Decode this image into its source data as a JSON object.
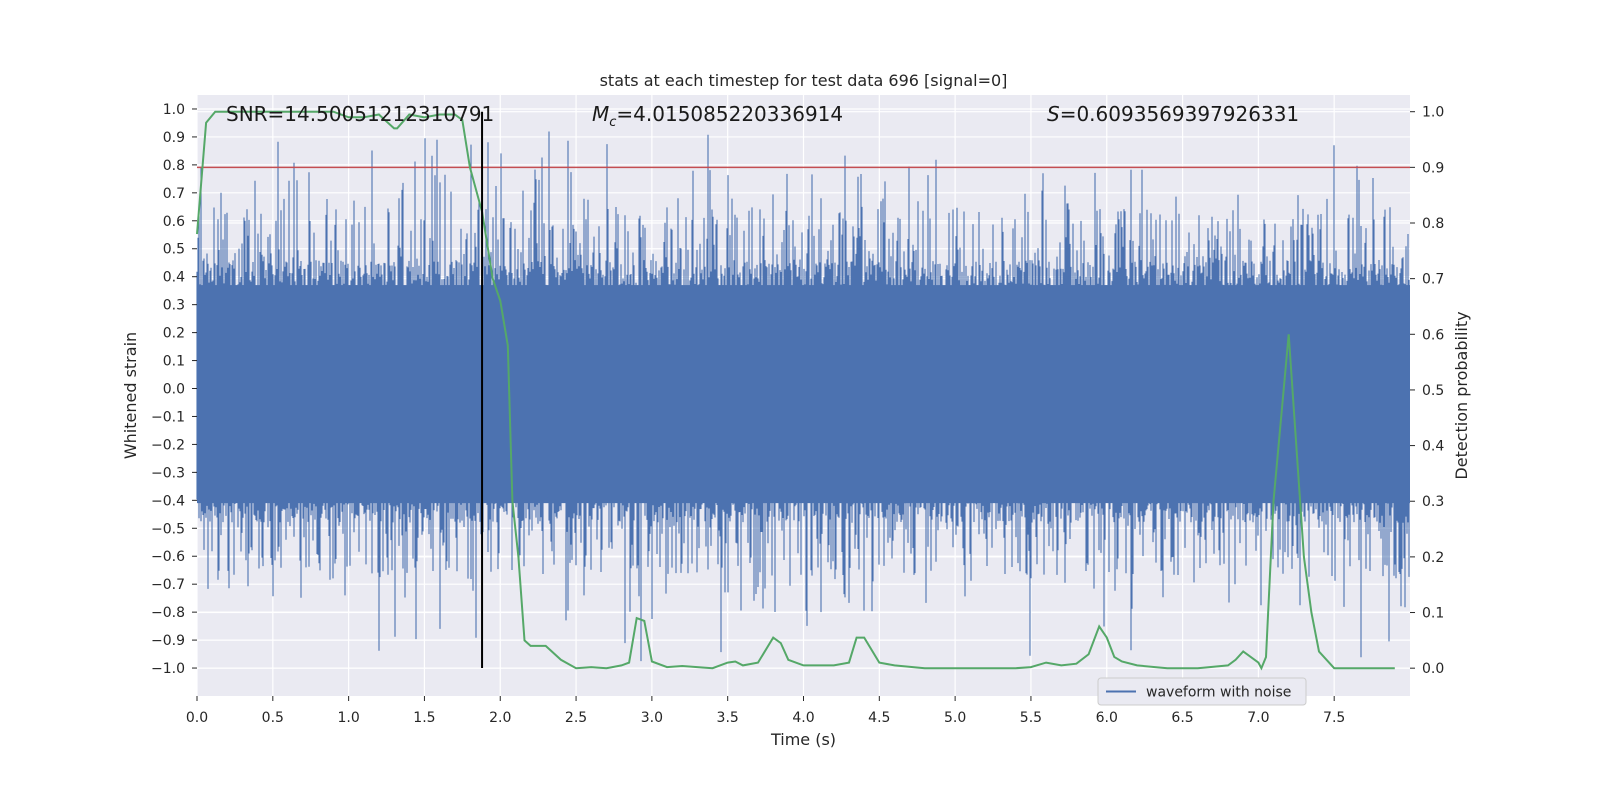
{
  "chart_data": {
    "type": "line",
    "title": "stats at each timestep for test data 696 [signal=0]",
    "xlabel": "Time (s)",
    "ylabel_left": "Whitened strain",
    "ylabel_right": "Detection probability",
    "xlim": [
      0,
      8
    ],
    "ylim_left": [
      -1.1,
      1.05
    ],
    "ylim_right": [
      -0.05,
      1.03
    ],
    "x_ticks": [
      "0.0",
      "0.5",
      "1.0",
      "1.5",
      "2.0",
      "2.5",
      "3.0",
      "3.5",
      "4.0",
      "4.5",
      "5.0",
      "5.5",
      "6.0",
      "6.5",
      "7.0",
      "7.5"
    ],
    "y_ticks_left": [
      "1.0",
      "0.9",
      "0.8",
      "0.7",
      "0.6",
      "0.5",
      "0.4",
      "0.3",
      "0.2",
      "0.1",
      "0.0",
      "-0.1",
      "-0.2",
      "-0.3",
      "-0.4",
      "-0.5",
      "-0.6",
      "-0.7",
      "-0.8",
      "-0.9",
      "-1.0"
    ],
    "y_ticks_right": [
      "1.0",
      "0.9",
      "0.8",
      "0.7",
      "0.6",
      "0.5",
      "0.4",
      "0.3",
      "0.2",
      "0.1",
      "0.0"
    ],
    "annotations": {
      "snr": "SNR=14.50051212310791",
      "mc_symbol": "M",
      "mc_sub": "c",
      "mc_value": "=4.015085220336914",
      "s_symbol": "S",
      "s_value": "=0.6093569397926331"
    },
    "threshold": 0.9,
    "vline_x": 1.88,
    "legend": {
      "label": "waveform with noise",
      "position": "lower-right"
    },
    "colors": {
      "waveform": "#4c72b0",
      "probability": "#55a868",
      "threshold": "#c44e52",
      "vline": "#000000",
      "plot_bg": "#eaeaf2",
      "grid": "#ffffff"
    },
    "probability": {
      "t": [
        0.0,
        0.06,
        0.12,
        0.25,
        0.5,
        0.75,
        0.9,
        1.0,
        1.1,
        1.2,
        1.3,
        1.32,
        1.4,
        1.5,
        1.6,
        1.7,
        1.75,
        1.8,
        1.88,
        1.95,
        2.0,
        2.05,
        2.08,
        2.12,
        2.16,
        2.2,
        2.3,
        2.4,
        2.5,
        2.6,
        2.7,
        2.8,
        2.85,
        2.9,
        2.95,
        3.0,
        3.1,
        3.2,
        3.3,
        3.4,
        3.5,
        3.55,
        3.6,
        3.7,
        3.8,
        3.85,
        3.9,
        4.0,
        4.2,
        4.3,
        4.35,
        4.4,
        4.5,
        4.6,
        4.8,
        5.0,
        5.2,
        5.4,
        5.5,
        5.6,
        5.7,
        5.8,
        5.88,
        5.95,
        6.0,
        6.05,
        6.1,
        6.2,
        6.4,
        6.6,
        6.8,
        6.85,
        6.9,
        7.0,
        7.02,
        7.05,
        7.1,
        7.15,
        7.2,
        7.25,
        7.3,
        7.35,
        7.4,
        7.5,
        7.6,
        7.9
      ],
      "p": [
        0.78,
        0.98,
        1.0,
        1.0,
        1.0,
        1.0,
        1.0,
        0.99,
        0.99,
        0.995,
        0.97,
        0.97,
        0.995,
        0.99,
        0.995,
        0.995,
        0.985,
        0.9,
        0.82,
        0.7,
        0.66,
        0.58,
        0.3,
        0.2,
        0.05,
        0.04,
        0.04,
        0.015,
        0.0,
        0.002,
        0.0,
        0.005,
        0.01,
        0.09,
        0.085,
        0.012,
        0.002,
        0.004,
        0.002,
        0.0,
        0.01,
        0.012,
        0.005,
        0.01,
        0.055,
        0.045,
        0.015,
        0.005,
        0.005,
        0.01,
        0.055,
        0.055,
        0.01,
        0.005,
        0.0,
        0.0,
        0.0,
        0.0,
        0.002,
        0.01,
        0.005,
        0.008,
        0.025,
        0.075,
        0.055,
        0.02,
        0.012,
        0.005,
        0.0,
        0.0,
        0.005,
        0.015,
        0.03,
        0.01,
        0.0,
        0.02,
        0.3,
        0.45,
        0.6,
        0.4,
        0.2,
        0.1,
        0.03,
        0.0,
        0.0,
        0.0
      ]
    }
  }
}
